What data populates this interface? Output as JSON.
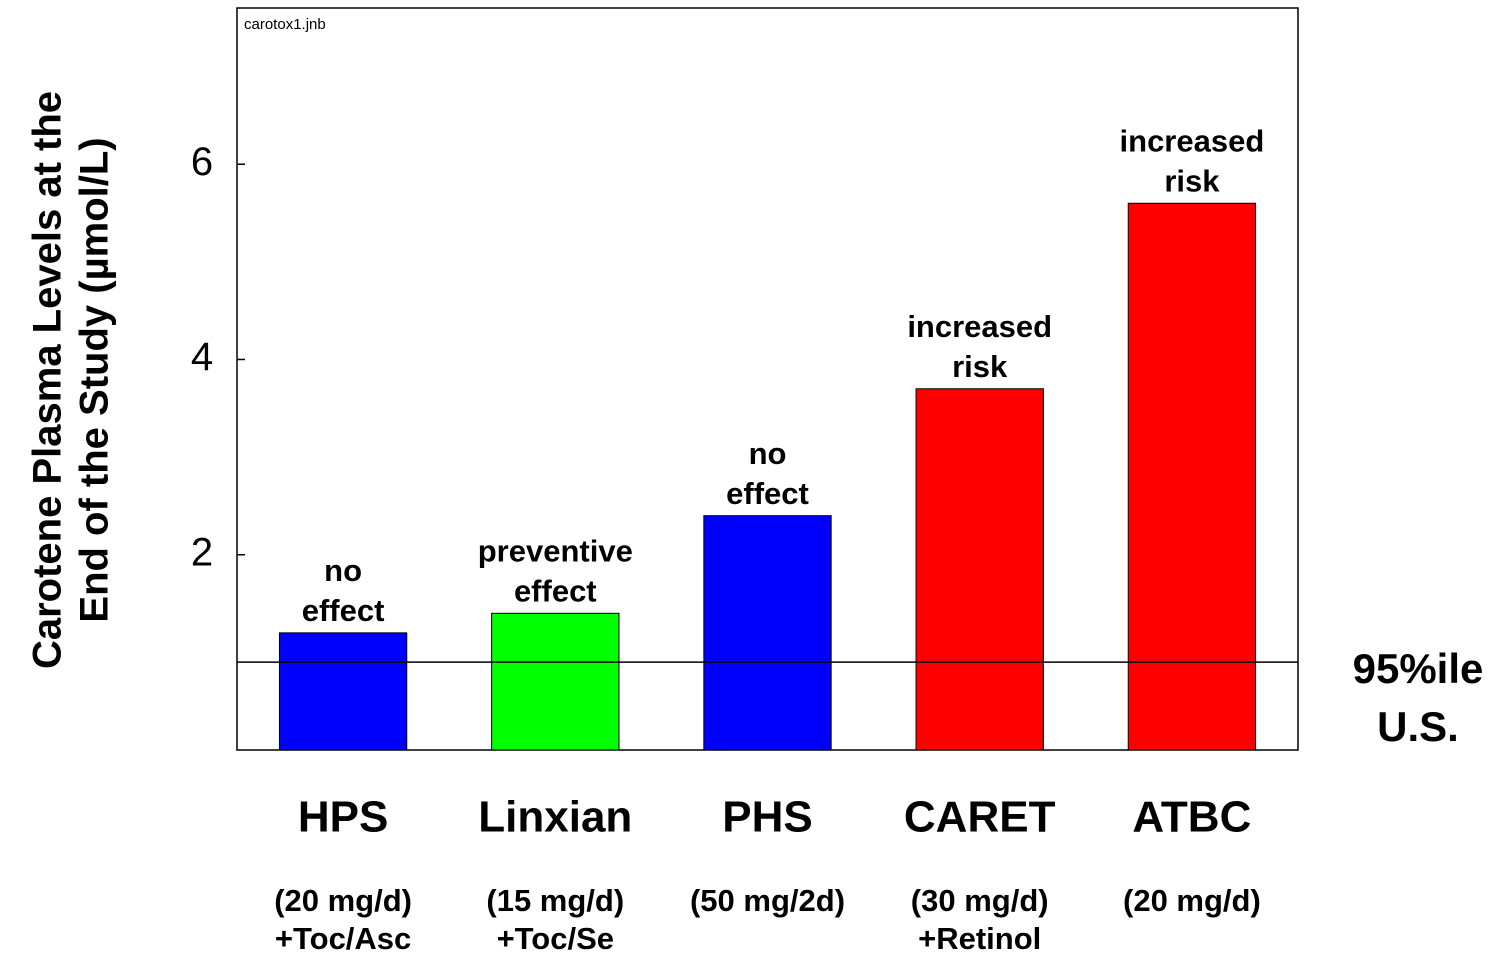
{
  "chart_data": {
    "type": "bar",
    "corner_note": "carotox1.jnb",
    "ylabel": [
      "Carotene Plasma Levels at the",
      "End of the Study (µmol/L)"
    ],
    "categories": [
      "HPS",
      "Linxian",
      "PHS",
      "CARET",
      "ATBC"
    ],
    "sub_labels": [
      [
        "(20 mg/d)",
        "+Toc/Asc"
      ],
      [
        "(15 mg/d)",
        "+Toc/Se"
      ],
      [
        "(50 mg/2d)"
      ],
      [
        "(30 mg/d)",
        "+Retinol"
      ],
      [
        "(20 mg/d)"
      ]
    ],
    "values": [
      1.2,
      1.4,
      2.4,
      3.7,
      5.6
    ],
    "colors": [
      "#0000ff",
      "#00ff00",
      "#0000ff",
      "#ff0000",
      "#ff0000"
    ],
    "annotations": [
      [
        "no",
        "effect"
      ],
      [
        "preventive",
        "effect"
      ],
      [
        "no",
        "effect"
      ],
      [
        "increased",
        "risk"
      ],
      [
        "increased",
        "risk"
      ]
    ],
    "reference_line": {
      "value": 0.9,
      "label": [
        "95%ile",
        "U.S."
      ]
    },
    "ylim": [
      0,
      7.6
    ],
    "yticks": [
      2,
      4,
      6
    ],
    "grid": false
  }
}
